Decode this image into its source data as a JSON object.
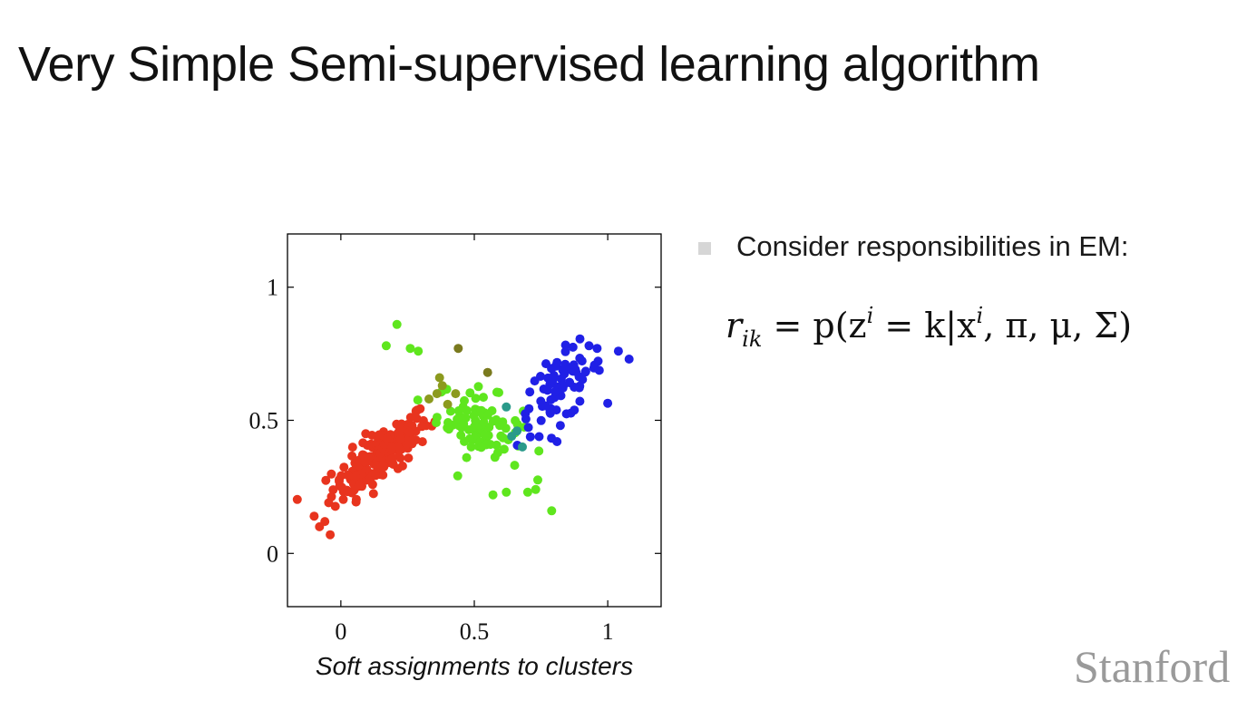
{
  "slide": {
    "title": "Very Simple Semi-supervised learning algorithm",
    "bullet": "Consider responsibilities in EM:",
    "formula": {
      "lhs": "r",
      "lhs_sub": "ik",
      "rhs_prefix": "= p(z",
      "rhs_sup1": "i",
      "rhs_mid": " = k|x",
      "rhs_sup2": "i",
      "rhs_suffix": ", π, μ, Σ)"
    },
    "watermark": "Stanford"
  },
  "chart_data": {
    "type": "scatter",
    "title": "",
    "xlabel": "Soft assignments to clusters",
    "ylabel": "",
    "xlim": [
      -0.2,
      1.2
    ],
    "ylim": [
      -0.2,
      1.2
    ],
    "xticks": [
      0,
      0.5,
      1
    ],
    "xtick_labels": [
      "0",
      "0.5",
      "1"
    ],
    "yticks": [
      0,
      0.5,
      1
    ],
    "ytick_labels": [
      "0",
      "0.5",
      "1"
    ],
    "grid": false,
    "clusters": [
      {
        "color": "#e8341e",
        "center": [
          0.15,
          0.37
        ],
        "spread": [
          0.09,
          0.08
        ],
        "corr": 0.8,
        "n": 190
      },
      {
        "color": "#5fe61e",
        "center": [
          0.52,
          0.48
        ],
        "spread": [
          0.08,
          0.07
        ],
        "corr": -0.4,
        "n": 90
      },
      {
        "color": "#2020e6",
        "center": [
          0.82,
          0.62
        ],
        "spread": [
          0.08,
          0.08
        ],
        "corr": 0.6,
        "n": 75
      }
    ],
    "points": [
      {
        "x": 0.17,
        "y": 0.78,
        "color": "#5fe61e"
      },
      {
        "x": 0.21,
        "y": 0.86,
        "color": "#5fe61e"
      },
      {
        "x": 0.26,
        "y": 0.77,
        "color": "#5fe61e"
      },
      {
        "x": 0.29,
        "y": 0.76,
        "color": "#5fe61e"
      },
      {
        "x": 0.44,
        "y": 0.77,
        "color": "#7a7a1e"
      },
      {
        "x": 0.55,
        "y": 0.68,
        "color": "#7a7a1e"
      },
      {
        "x": 0.79,
        "y": 0.16,
        "color": "#5fe61e"
      },
      {
        "x": 0.73,
        "y": 0.24,
        "color": "#5fe61e"
      },
      {
        "x": 0.7,
        "y": 0.23,
        "color": "#5fe61e"
      },
      {
        "x": 0.62,
        "y": 0.23,
        "color": "#5fe61e"
      },
      {
        "x": 0.57,
        "y": 0.22,
        "color": "#5fe61e"
      },
      {
        "x": 0.81,
        "y": 0.42,
        "color": "#2020e6"
      },
      {
        "x": 0.93,
        "y": 0.78,
        "color": "#2020e6"
      },
      {
        "x": 0.96,
        "y": 0.77,
        "color": "#2020e6"
      },
      {
        "x": 1.08,
        "y": 0.73,
        "color": "#2020e6"
      },
      {
        "x": 1.04,
        "y": 0.76,
        "color": "#2020e6"
      },
      {
        "x": -0.1,
        "y": 0.14,
        "color": "#e8341e"
      },
      {
        "x": -0.06,
        "y": 0.12,
        "color": "#e8341e"
      },
      {
        "x": -0.04,
        "y": 0.07,
        "color": "#e8341e"
      },
      {
        "x": -0.08,
        "y": 0.1,
        "color": "#e8341e"
      },
      {
        "x": 0.66,
        "y": 0.46,
        "color": "#2a9a8a"
      },
      {
        "x": 0.64,
        "y": 0.44,
        "color": "#2a9a8a"
      },
      {
        "x": 0.68,
        "y": 0.4,
        "color": "#2a9a8a"
      },
      {
        "x": 0.62,
        "y": 0.55,
        "color": "#2a9a8a"
      },
      {
        "x": 0.36,
        "y": 0.6,
        "color": "#8c9a1e"
      },
      {
        "x": 0.38,
        "y": 0.63,
        "color": "#8c9a1e"
      },
      {
        "x": 0.33,
        "y": 0.58,
        "color": "#8c9a1e"
      },
      {
        "x": 0.4,
        "y": 0.56,
        "color": "#8c9a1e"
      },
      {
        "x": 0.37,
        "y": 0.66,
        "color": "#8c9a1e"
      },
      {
        "x": 0.43,
        "y": 0.6,
        "color": "#8c9a1e"
      }
    ]
  }
}
